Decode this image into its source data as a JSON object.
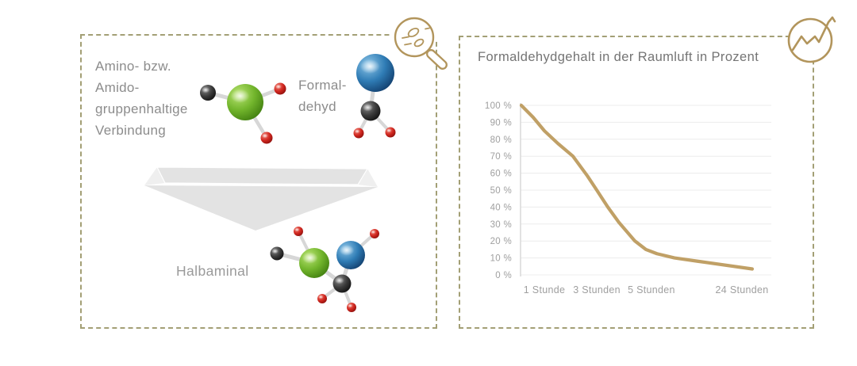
{
  "colors": {
    "panel_border": "#a39f75",
    "icon_gold": "#b2955c",
    "chart_line": "#c0a066",
    "grid_line": "#ececec",
    "axis_line": "#d9d9d9",
    "title_text": "#747474",
    "body_text": "#8c8c8c",
    "product_text": "#9a9a9a",
    "tick_text": "#9f9f9f",
    "arrow": "#e3e3e3",
    "arrow_light": "#efefef",
    "bond": "#d7d7d7",
    "molecule_gradients": {
      "green": [
        "#b9e473",
        "#72b52c",
        "#417f10"
      ],
      "blue": [
        "#8ec6e8",
        "#2f7cb5",
        "#123f6e"
      ],
      "black": [
        "#8a8a8a",
        "#3c3c3c",
        "#111111"
      ],
      "red": [
        "#f08579",
        "#d1271f",
        "#8c0f0c"
      ]
    }
  },
  "left_panel": {
    "reactant_lines": [
      "Amino- bzw.",
      "Amido-",
      "gruppenhaltige",
      "Verbindung"
    ],
    "formaldehyde_lines": [
      "Formal-",
      "dehyd"
    ],
    "product_label": "Halbaminal"
  },
  "right_panel": {
    "chart_title": "Formaldehydgehalt in der Raumluft in Prozent"
  },
  "chart_data": {
    "type": "line",
    "title": "Formaldehydgehalt in der Raumluft in Prozent",
    "xlabel": "",
    "ylabel": "",
    "ylim": [
      0,
      100
    ],
    "grid": true,
    "legend": "none",
    "y_tick_labels": [
      "100 %",
      "90 %",
      "80 %",
      "70 %",
      "60 %",
      "50 %",
      "40 %",
      "30 %",
      "20 %",
      "10 %",
      "0 %"
    ],
    "x_tick_labels": [
      "1 Stunde",
      "3 Stunden",
      "5 Stunden",
      "24 Stunden"
    ],
    "x_tick_positions": [
      0.095,
      0.304,
      0.522,
      0.883
    ],
    "series": [
      {
        "name": "Formaldehydgehalt in der Raumluft",
        "start_value_percent": 100,
        "values_at_ticks_percent": [
          85,
          50,
          14,
          4
        ]
      }
    ],
    "curve_points": [
      [
        0.003,
        100
      ],
      [
        0.05,
        93
      ],
      [
        0.095,
        85
      ],
      [
        0.149,
        77.5
      ],
      [
        0.209,
        70
      ],
      [
        0.266,
        58.5
      ],
      [
        0.304,
        50
      ],
      [
        0.348,
        40
      ],
      [
        0.392,
        31
      ],
      [
        0.456,
        20
      ],
      [
        0.5,
        15
      ],
      [
        0.544,
        12.5
      ],
      [
        0.614,
        10
      ],
      [
        0.709,
        8
      ],
      [
        0.924,
        3.5
      ]
    ],
    "line_width": 4.2
  }
}
